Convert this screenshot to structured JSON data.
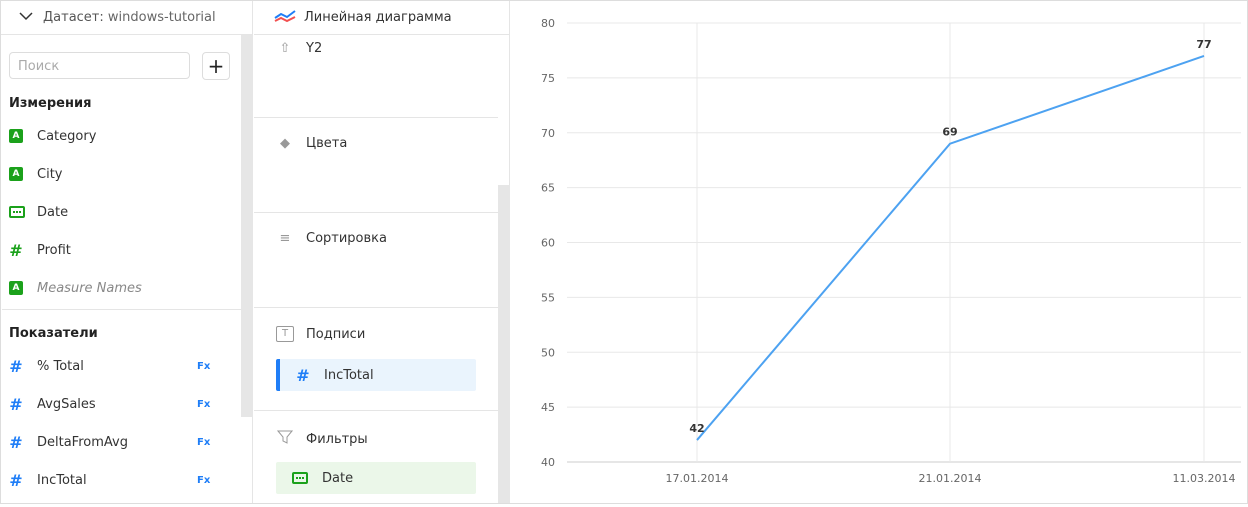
{
  "dataset": {
    "label": "Датасет:",
    "name": "windows-tutorial"
  },
  "search": {
    "placeholder": "Поиск"
  },
  "add_label": "+",
  "dimensions": {
    "title": "Измерения",
    "items": [
      {
        "label": "Category",
        "type": "string"
      },
      {
        "label": "City",
        "type": "string"
      },
      {
        "label": "Date",
        "type": "date"
      },
      {
        "label": "Profit",
        "type": "number"
      },
      {
        "label": "Measure Names",
        "type": "string"
      }
    ]
  },
  "measures": {
    "title": "Показатели",
    "items": [
      {
        "label": "% Total",
        "fx": "Fx"
      },
      {
        "label": "AvgSales",
        "fx": "Fx"
      },
      {
        "label": "DeltaFromAvg",
        "fx": "Fx"
      },
      {
        "label": "IncTotal",
        "fx": "Fx"
      }
    ]
  },
  "visualization": {
    "type_label": "Линейная диаграмма",
    "sections": {
      "y2": "Y2",
      "colors": "Цвета",
      "sort": "Сортировка",
      "labels": "Подписи",
      "filters": "Фильтры"
    },
    "labels_field": "IncTotal",
    "filters_field": "Date"
  },
  "chart_data": {
    "type": "line",
    "x": [
      "17.01.2014",
      "21.01.2014",
      "11.03.2014"
    ],
    "series": [
      {
        "values": [
          42,
          69,
          77
        ],
        "color": "#4da2f1"
      }
    ],
    "data_labels": [
      "42",
      "69",
      "77"
    ],
    "ylim": [
      40,
      80
    ],
    "yticks": [
      40,
      45,
      50,
      55,
      60,
      65,
      70,
      75,
      80
    ],
    "grid": true
  }
}
